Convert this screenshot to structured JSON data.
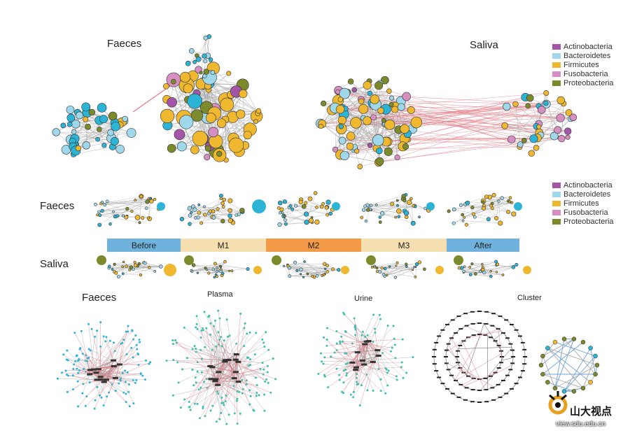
{
  "palette": {
    "Actinobacteria": "#a455a8",
    "Bacteroidetes": "#9fd8ea",
    "Firmicutes": "#efb82e",
    "Fusobacteria": "#d58fc0",
    "Proteobacteria": "#7c8a2b",
    "edge_pos": "#aaaaaa",
    "edge_neg": "#e07a84",
    "node_cyan": "#2cb4d6",
    "node_teal": "#3fbfae"
  },
  "top": {
    "faeces_label": "Faeces",
    "saliva_label": "Saliva"
  },
  "legend_top": [
    {
      "name": "Actinobacteria",
      "color": "#a455a8"
    },
    {
      "name": "Bacteroidetes",
      "color": "#9fd8ea"
    },
    {
      "name": "Firmicutes",
      "color": "#efb82e"
    },
    {
      "name": "Fusobacteria",
      "color": "#d58fc0"
    },
    {
      "name": "Proteobacteria",
      "color": "#7c8a2b"
    }
  ],
  "legend_mid": [
    {
      "name": "Actinobacteria",
      "color": "#a455a8"
    },
    {
      "name": "Bacteroidetes",
      "color": "#9fd8ea"
    },
    {
      "name": "Firmicutes",
      "color": "#efb82e"
    },
    {
      "name": "Fusobacteria",
      "color": "#d58fc0"
    },
    {
      "name": "Proteobacteria",
      "color": "#7c8a2b"
    }
  ],
  "middle": {
    "faeces_label": "Faeces",
    "saliva_label": "Saliva",
    "timeline": [
      {
        "label": "Before",
        "color": "#6fb2dd"
      },
      {
        "label": "M1",
        "color": "#f5deb0"
      },
      {
        "label": "M2",
        "color": "#f39a48"
      },
      {
        "label": "M3",
        "color": "#f5deb0"
      },
      {
        "label": "After",
        "color": "#6fb2dd"
      }
    ]
  },
  "bottom": {
    "faeces_label": "Faeces",
    "plasma_label": "Plasma",
    "urine_label": "Urine",
    "cluster_label": "Cluster"
  },
  "watermark": {
    "text": "山大视点",
    "url": "view.sdu.edu.cn"
  }
}
